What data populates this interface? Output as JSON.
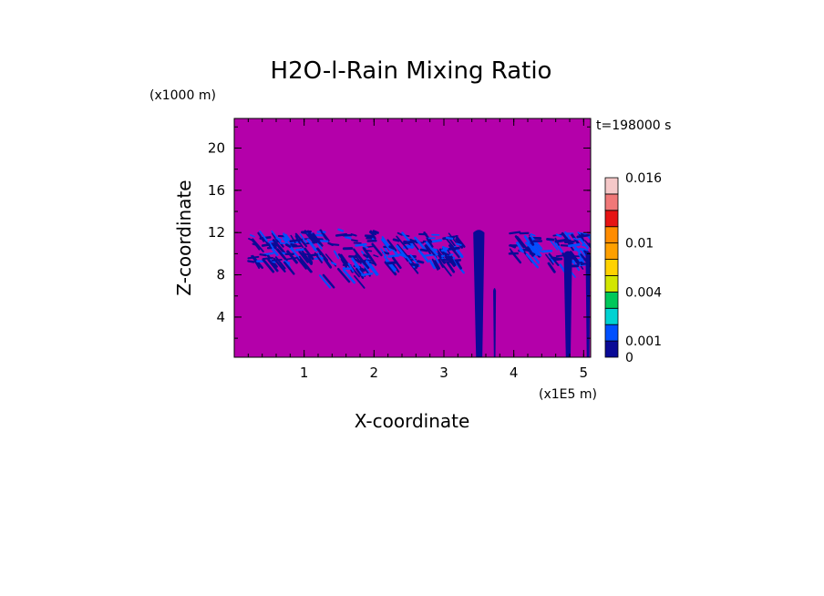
{
  "chart_data": {
    "type": "heatmap",
    "title": "H2O-l-Rain Mixing Ratio",
    "xlabel": "X-coordinate",
    "ylabel": "Z-coordinate",
    "x_unit": "(x1E5 m)",
    "y_unit": "(x1000 m)",
    "time_label": "t=198000 s",
    "xlim": [
      0,
      5.1
    ],
    "ylim": [
      0.2,
      22.8
    ],
    "x_ticks": [
      1,
      2,
      3,
      4,
      5
    ],
    "y_ticks": [
      4,
      8,
      12,
      16,
      20
    ],
    "background_value": "0",
    "background_color": "#b400aa",
    "colorbar": {
      "levels": [
        0,
        0.001,
        0.002,
        0.003,
        0.004,
        0.006,
        0.008,
        0.01,
        0.012,
        0.014,
        0.016
      ],
      "colors": [
        "#0a0a96",
        "#0050ff",
        "#00d2d2",
        "#00c85a",
        "#d2e600",
        "#ffd200",
        "#ffa000",
        "#ff8c00",
        "#e61414",
        "#f07878",
        "#f5c8c8"
      ],
      "tick_labels": [
        "0",
        "0.001",
        "0.004",
        "0.01",
        "0.016"
      ],
      "tick_values": [
        0,
        0.001,
        0.004,
        0.01,
        0.016
      ]
    },
    "layer_band": {
      "description": "",
      "z_range": [
        7.5,
        12.3
      ],
      "x_range": [
        0.15,
        5.1
      ]
    },
    "regions": [
      {
        "x": [
          0.2,
          1.05
        ],
        "z": [
          8.5,
          12.2
        ],
        "level": 0
      },
      {
        "x": [
          1.05,
          2.0
        ],
        "z": [
          7.0,
          12.3
        ],
        "level": 0
      },
      {
        "x": [
          2.1,
          3.2
        ],
        "z": [
          8.3,
          12.0
        ],
        "level": 0
      },
      {
        "x": [
          3.4,
          3.6
        ],
        "z": [
          0.2,
          12.0
        ],
        "level": 0
      },
      {
        "x": [
          3.7,
          3.75
        ],
        "z": [
          0.2,
          6.5
        ],
        "level": 0
      },
      {
        "x": [
          3.9,
          4.3
        ],
        "z": [
          9.5,
          12.0
        ],
        "level": 0
      },
      {
        "x": [
          4.4,
          5.1
        ],
        "z": [
          8.0,
          12.2
        ],
        "level": 0
      },
      {
        "x": [
          4.7,
          4.85
        ],
        "z": [
          0.2,
          10.0
        ],
        "level": 0
      },
      {
        "x": [
          5.02,
          5.1
        ],
        "z": [
          0.2,
          10.0
        ],
        "level": 0
      }
    ]
  }
}
